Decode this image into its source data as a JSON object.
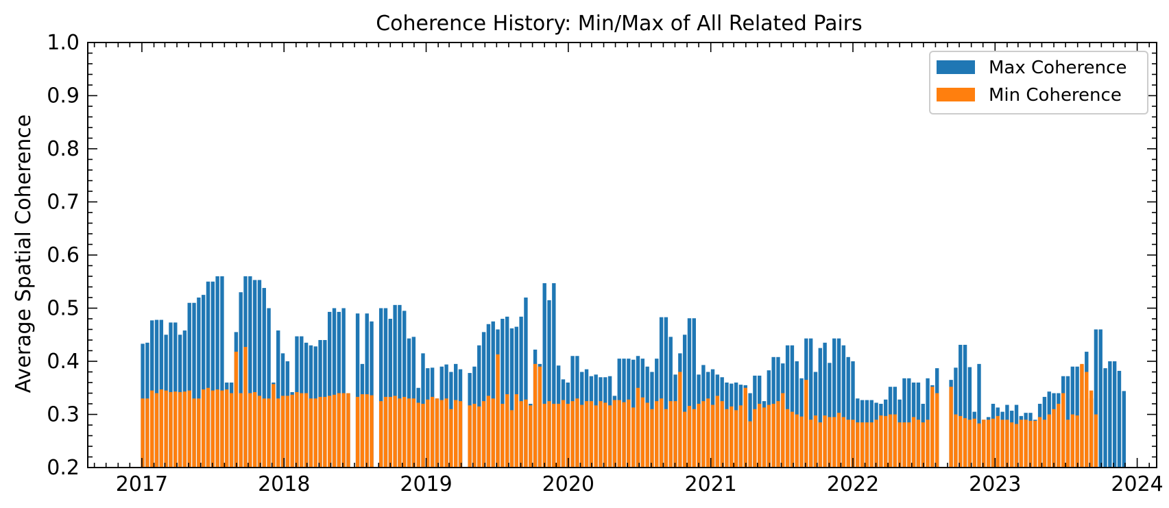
{
  "chart_data": {
    "type": "bar",
    "title": "Coherence History: Min/Max of All Related Pairs",
    "xlabel": "",
    "ylabel": "Average Spatial Coherence",
    "ylim": [
      0.2,
      1.0
    ],
    "xlim": [
      "2016-08-15",
      "2024-02-20"
    ],
    "x_ticks": [
      "2017",
      "2018",
      "2019",
      "2020",
      "2021",
      "2022",
      "2023",
      "2024"
    ],
    "y_ticks": [
      "0.2",
      "0.3",
      "0.4",
      "0.5",
      "0.6",
      "0.7",
      "0.8",
      "0.9",
      "1.0"
    ],
    "grid": false,
    "legend_position": "top-right",
    "series": [
      {
        "name": "Max Coherence",
        "color": "#1f77b4"
      },
      {
        "name": "Min Coherence",
        "color": "#ff7f0e"
      }
    ],
    "x": [
      "2017-01-03",
      "2017-01-15",
      "2017-01-27",
      "2017-02-08",
      "2017-02-20",
      "2017-03-04",
      "2017-03-16",
      "2017-03-28",
      "2017-04-09",
      "2017-04-21",
      "2017-05-03",
      "2017-05-15",
      "2017-05-27",
      "2017-06-08",
      "2017-06-20",
      "2017-07-02",
      "2017-07-14",
      "2017-07-26",
      "2017-08-07",
      "2017-08-19",
      "2017-08-31",
      "2017-09-12",
      "2017-09-24",
      "2017-10-06",
      "2017-10-18",
      "2017-10-30",
      "2017-11-11",
      "2017-11-23",
      "2017-12-05",
      "2017-12-17",
      "2017-12-29",
      "2018-01-10",
      "2018-01-22",
      "2018-02-03",
      "2018-02-15",
      "2018-02-27",
      "2018-03-11",
      "2018-03-23",
      "2018-04-04",
      "2018-04-16",
      "2018-04-28",
      "2018-05-10",
      "2018-05-22",
      "2018-06-03",
      "2018-06-15",
      "2018-07-09",
      "2018-07-21",
      "2018-08-02",
      "2018-08-14",
      "2018-09-07",
      "2018-09-19",
      "2018-10-01",
      "2018-10-13",
      "2018-10-25",
      "2018-11-06",
      "2018-11-18",
      "2018-11-30",
      "2018-12-12",
      "2018-12-24",
      "2019-01-05",
      "2019-01-17",
      "2019-01-29",
      "2019-02-10",
      "2019-02-22",
      "2019-03-06",
      "2019-03-18",
      "2019-03-30",
      "2019-04-23",
      "2019-05-05",
      "2019-05-17",
      "2019-05-29",
      "2019-06-10",
      "2019-06-22",
      "2019-07-04",
      "2019-07-16",
      "2019-07-28",
      "2019-08-09",
      "2019-08-21",
      "2019-09-02",
      "2019-09-14",
      "2019-09-26",
      "2019-10-08",
      "2019-10-20",
      "2019-11-01",
      "2019-11-13",
      "2019-11-25",
      "2019-12-07",
      "2019-12-19",
      "2019-12-31",
      "2020-01-12",
      "2020-01-24",
      "2020-02-05",
      "2020-02-17",
      "2020-02-29",
      "2020-03-12",
      "2020-03-24",
      "2020-04-05",
      "2020-04-17",
      "2020-04-29",
      "2020-05-11",
      "2020-05-23",
      "2020-06-04",
      "2020-06-16",
      "2020-06-28",
      "2020-07-10",
      "2020-07-22",
      "2020-08-03",
      "2020-08-15",
      "2020-08-27",
      "2020-09-08",
      "2020-09-20",
      "2020-10-02",
      "2020-10-14",
      "2020-10-26",
      "2020-11-07",
      "2020-11-19",
      "2020-12-01",
      "2020-12-13",
      "2020-12-25",
      "2021-01-06",
      "2021-01-18",
      "2021-01-30",
      "2021-02-11",
      "2021-02-23",
      "2021-03-07",
      "2021-03-19",
      "2021-03-31",
      "2021-04-12",
      "2021-04-24",
      "2021-05-06",
      "2021-05-18",
      "2021-05-30",
      "2021-06-11",
      "2021-06-23",
      "2021-07-05",
      "2021-07-17",
      "2021-07-29",
      "2021-08-10",
      "2021-08-22",
      "2021-09-03",
      "2021-09-15",
      "2021-09-27",
      "2021-10-09",
      "2021-10-21",
      "2021-11-02",
      "2021-11-14",
      "2021-11-26",
      "2021-12-08",
      "2021-12-20",
      "2022-01-01",
      "2022-01-13",
      "2022-01-25",
      "2022-02-06",
      "2022-02-18",
      "2022-03-02",
      "2022-03-14",
      "2022-03-26",
      "2022-04-07",
      "2022-04-19",
      "2022-05-01",
      "2022-05-13",
      "2022-05-25",
      "2022-06-06",
      "2022-06-18",
      "2022-06-30",
      "2022-07-12",
      "2022-07-24",
      "2022-08-05",
      "2022-09-10",
      "2022-09-22",
      "2022-10-04",
      "2022-10-16",
      "2022-10-28",
      "2022-11-09",
      "2022-11-21",
      "2022-12-03",
      "2022-12-15",
      "2022-12-27",
      "2023-01-08",
      "2023-01-20",
      "2023-02-01",
      "2023-02-13",
      "2023-02-25",
      "2023-03-09",
      "2023-03-21",
      "2023-04-02",
      "2023-04-14",
      "2023-04-26",
      "2023-05-08",
      "2023-05-20",
      "2023-06-01",
      "2023-06-13",
      "2023-06-25",
      "2023-07-07",
      "2023-07-19",
      "2023-07-31",
      "2023-08-12",
      "2023-08-24",
      "2023-09-05",
      "2023-09-17",
      "2023-09-29",
      "2023-10-11",
      "2023-10-23",
      "2023-11-04",
      "2023-11-16",
      "2023-11-28",
      "2023-12-10"
    ],
    "max": [
      0.433,
      0.435,
      0.477,
      0.478,
      0.478,
      0.45,
      0.473,
      0.473,
      0.45,
      0.458,
      0.51,
      0.51,
      0.52,
      0.525,
      0.55,
      0.55,
      0.56,
      0.56,
      0.36,
      0.36,
      0.455,
      0.53,
      0.56,
      0.56,
      0.553,
      0.553,
      0.538,
      0.5,
      0.36,
      0.458,
      0.415,
      0.4,
      0.342,
      0.447,
      0.447,
      0.435,
      0.43,
      0.428,
      0.44,
      0.44,
      0.493,
      0.5,
      0.493,
      0.5,
      0.34,
      0.49,
      0.395,
      0.49,
      0.475,
      0.5,
      0.5,
      0.48,
      0.506,
      0.506,
      0.495,
      0.443,
      0.446,
      0.35,
      0.415,
      0.387,
      0.388,
      0.33,
      0.39,
      0.394,
      0.38,
      0.395,
      0.385,
      0.378,
      0.39,
      0.43,
      0.455,
      0.47,
      0.475,
      0.46,
      0.48,
      0.484,
      0.462,
      0.465,
      0.484,
      0.52,
      0.32,
      0.422,
      0.395,
      0.547,
      0.515,
      0.547,
      0.392,
      0.366,
      0.36,
      0.41,
      0.41,
      0.38,
      0.385,
      0.372,
      0.375,
      0.37,
      0.37,
      0.372,
      0.335,
      0.405,
      0.405,
      0.405,
      0.403,
      0.41,
      0.405,
      0.39,
      0.38,
      0.405,
      0.483,
      0.483,
      0.446,
      0.375,
      0.415,
      0.45,
      0.481,
      0.481,
      0.375,
      0.393,
      0.38,
      0.385,
      0.375,
      0.37,
      0.36,
      0.358,
      0.36,
      0.356,
      0.355,
      0.34,
      0.373,
      0.373,
      0.325,
      0.383,
      0.408,
      0.408,
      0.396,
      0.43,
      0.43,
      0.4,
      0.368,
      0.443,
      0.443,
      0.38,
      0.425,
      0.435,
      0.397,
      0.443,
      0.443,
      0.43,
      0.408,
      0.4,
      0.33,
      0.327,
      0.327,
      0.327,
      0.322,
      0.32,
      0.328,
      0.352,
      0.352,
      0.328,
      0.368,
      0.368,
      0.36,
      0.36,
      0.32,
      0.368,
      0.355,
      0.387,
      0.365,
      0.388,
      0.431,
      0.431,
      0.389,
      0.305,
      0.395,
      0.29,
      0.295,
      0.32,
      0.313,
      0.305,
      0.318,
      0.307,
      0.318,
      0.297,
      0.303,
      0.303,
      0.29,
      0.32,
      0.333,
      0.343,
      0.34,
      0.34,
      0.372,
      0.372,
      0.39,
      0.39,
      0.393,
      0.418,
      0.33,
      0.46,
      0.46,
      0.387,
      0.4,
      0.4,
      0.382,
      0.344
    ],
    "min": [
      0.33,
      0.33,
      0.345,
      0.34,
      0.347,
      0.345,
      0.342,
      0.343,
      0.342,
      0.343,
      0.345,
      0.33,
      0.33,
      0.347,
      0.35,
      0.345,
      0.347,
      0.345,
      0.347,
      0.34,
      0.418,
      0.34,
      0.427,
      0.34,
      0.342,
      0.335,
      0.33,
      0.33,
      0.357,
      0.33,
      0.335,
      0.335,
      0.337,
      0.342,
      0.34,
      0.34,
      0.33,
      0.33,
      0.333,
      0.333,
      0.335,
      0.337,
      0.34,
      0.34,
      0.34,
      0.333,
      0.338,
      0.338,
      0.336,
      0.325,
      0.333,
      0.333,
      0.335,
      0.33,
      0.333,
      0.33,
      0.33,
      0.322,
      0.32,
      0.328,
      0.333,
      0.33,
      0.327,
      0.33,
      0.31,
      0.327,
      0.325,
      0.317,
      0.32,
      0.315,
      0.325,
      0.335,
      0.33,
      0.413,
      0.32,
      0.338,
      0.308,
      0.338,
      0.325,
      0.328,
      0.317,
      0.395,
      0.39,
      0.32,
      0.325,
      0.32,
      0.32,
      0.327,
      0.32,
      0.325,
      0.33,
      0.318,
      0.325,
      0.325,
      0.317,
      0.325,
      0.322,
      0.317,
      0.327,
      0.327,
      0.323,
      0.328,
      0.313,
      0.35,
      0.332,
      0.322,
      0.31,
      0.325,
      0.33,
      0.31,
      0.325,
      0.325,
      0.38,
      0.305,
      0.316,
      0.31,
      0.32,
      0.325,
      0.33,
      0.318,
      0.335,
      0.325,
      0.31,
      0.315,
      0.308,
      0.317,
      0.35,
      0.287,
      0.31,
      0.32,
      0.313,
      0.318,
      0.32,
      0.325,
      0.34,
      0.31,
      0.305,
      0.3,
      0.296,
      0.365,
      0.29,
      0.298,
      0.285,
      0.298,
      0.295,
      0.295,
      0.303,
      0.295,
      0.29,
      0.29,
      0.285,
      0.285,
      0.285,
      0.285,
      0.29,
      0.298,
      0.297,
      0.3,
      0.3,
      0.285,
      0.285,
      0.285,
      0.295,
      0.29,
      0.285,
      0.29,
      0.352,
      0.34,
      0.352,
      0.3,
      0.297,
      0.293,
      0.29,
      0.292,
      0.283,
      0.29,
      0.29,
      0.292,
      0.297,
      0.29,
      0.29,
      0.285,
      0.282,
      0.29,
      0.29,
      0.288,
      0.288,
      0.295,
      0.29,
      0.3,
      0.31,
      0.32,
      0.34,
      0.29,
      0.3,
      0.298,
      0.395,
      0.38,
      0.345,
      0.3
    ]
  }
}
